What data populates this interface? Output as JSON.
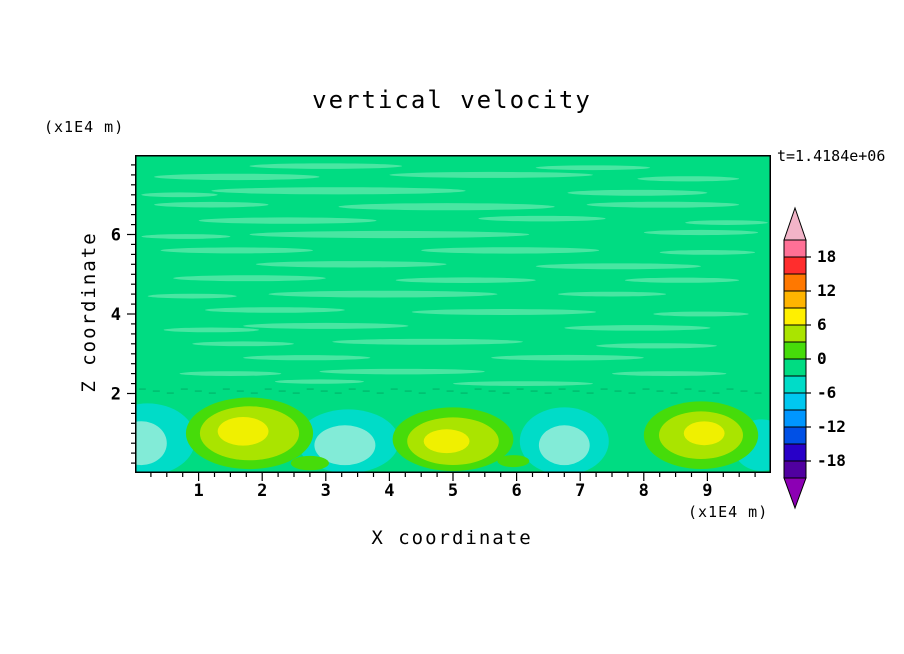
{
  "title": "vertical velocity",
  "time_label": "t=1.4184e+06",
  "axes": {
    "x_label": "X coordinate",
    "x_unit": "(x1E4 m)",
    "z_label": "Z coordinate",
    "z_unit": "(x1E4 m)"
  },
  "colorbar": {
    "labels": [
      "18",
      "12",
      "6",
      "0",
      "-6",
      "-12",
      "-18"
    ],
    "band_colors": [
      "#FF7096",
      "#FF2D2D",
      "#FF7800",
      "#FFB400",
      "#FFF000",
      "#AAE400",
      "#46DC0A",
      "#00DC82",
      "#00DCC8",
      "#00C8F0",
      "#0096FF",
      "#0050E6",
      "#2800C8",
      "#5000A0"
    ],
    "top_arrow_color": "#F2B4C8",
    "bottom_arrow_color": "#8C00B4",
    "value_min": -21,
    "value_max": 21,
    "contour_interval": 3
  },
  "chart_data": {
    "type": "heatmap",
    "title": "vertical velocity",
    "xlabel": "X coordinate (x1E4 m)",
    "ylabel": "Z coordinate (x1E4 m)",
    "time": "t=1.4184e+06",
    "x_range": [
      0,
      10
    ],
    "z_range": [
      0,
      8
    ],
    "x_ticks": [
      1,
      2,
      3,
      4,
      5,
      6,
      7,
      8,
      9
    ],
    "z_ticks": [
      2,
      4,
      6
    ],
    "minor_tick_step": 0.25,
    "value_levels": [
      -18,
      -12,
      -6,
      0,
      6,
      12,
      18
    ],
    "contour_interval": 3,
    "description": "Filled contour field of vertical velocity. Interior (z>2) is near zero (green band -3..0) with thin elongated horizontal streak anomalies of slightly positive velocity. Below z~2 alternating convective cells: updraft plumes (values ~6-12, yellow-green with yellow cores) centered near x=1.8, 5.0 and 8.9, and downdraft patches (values ~ -3 to -9, cyan) near x=0.2, 3.35, 6.75 and 9.85.",
    "colors": {
      "field": "#00DC82",
      "streak": "#49E6A2",
      "dash": "#00C070"
    },
    "streaks": [
      {
        "x": 3.0,
        "z": 7.72,
        "w": 2.4,
        "h": 0.14
      },
      {
        "x": 7.2,
        "z": 7.68,
        "w": 1.8,
        "h": 0.12
      },
      {
        "x": 1.6,
        "z": 7.45,
        "w": 2.6,
        "h": 0.16
      },
      {
        "x": 5.6,
        "z": 7.5,
        "w": 3.2,
        "h": 0.15
      },
      {
        "x": 8.7,
        "z": 7.4,
        "w": 1.6,
        "h": 0.13
      },
      {
        "x": 3.2,
        "z": 7.1,
        "w": 4.0,
        "h": 0.18
      },
      {
        "x": 7.9,
        "z": 7.05,
        "w": 2.2,
        "h": 0.15
      },
      {
        "x": 0.7,
        "z": 7.0,
        "w": 1.2,
        "h": 0.12
      },
      {
        "x": 4.9,
        "z": 6.7,
        "w": 3.4,
        "h": 0.18
      },
      {
        "x": 1.2,
        "z": 6.75,
        "w": 1.8,
        "h": 0.14
      },
      {
        "x": 8.3,
        "z": 6.75,
        "w": 2.4,
        "h": 0.15
      },
      {
        "x": 2.4,
        "z": 6.35,
        "w": 2.8,
        "h": 0.16
      },
      {
        "x": 6.4,
        "z": 6.4,
        "w": 2.0,
        "h": 0.14
      },
      {
        "x": 9.3,
        "z": 6.3,
        "w": 1.3,
        "h": 0.12
      },
      {
        "x": 4.0,
        "z": 6.0,
        "w": 4.4,
        "h": 0.18
      },
      {
        "x": 8.9,
        "z": 6.05,
        "w": 1.8,
        "h": 0.13
      },
      {
        "x": 0.8,
        "z": 5.95,
        "w": 1.4,
        "h": 0.12
      },
      {
        "x": 1.6,
        "z": 5.6,
        "w": 2.4,
        "h": 0.15
      },
      {
        "x": 5.9,
        "z": 5.6,
        "w": 2.8,
        "h": 0.16
      },
      {
        "x": 9.0,
        "z": 5.55,
        "w": 1.5,
        "h": 0.12
      },
      {
        "x": 3.4,
        "z": 5.25,
        "w": 3.0,
        "h": 0.16
      },
      {
        "x": 7.6,
        "z": 5.2,
        "w": 2.6,
        "h": 0.15
      },
      {
        "x": 1.8,
        "z": 4.9,
        "w": 2.4,
        "h": 0.15
      },
      {
        "x": 5.2,
        "z": 4.85,
        "w": 2.2,
        "h": 0.14
      },
      {
        "x": 8.6,
        "z": 4.85,
        "w": 1.8,
        "h": 0.13
      },
      {
        "x": 3.9,
        "z": 4.5,
        "w": 3.6,
        "h": 0.17
      },
      {
        "x": 7.5,
        "z": 4.5,
        "w": 1.7,
        "h": 0.12
      },
      {
        "x": 0.9,
        "z": 4.45,
        "w": 1.4,
        "h": 0.12
      },
      {
        "x": 2.2,
        "z": 4.1,
        "w": 2.2,
        "h": 0.14
      },
      {
        "x": 5.8,
        "z": 4.05,
        "w": 2.9,
        "h": 0.15
      },
      {
        "x": 8.9,
        "z": 4.0,
        "w": 1.5,
        "h": 0.12
      },
      {
        "x": 3.0,
        "z": 3.7,
        "w": 2.6,
        "h": 0.15
      },
      {
        "x": 7.9,
        "z": 3.65,
        "w": 2.3,
        "h": 0.14
      },
      {
        "x": 1.2,
        "z": 3.6,
        "w": 1.5,
        "h": 0.12
      },
      {
        "x": 4.6,
        "z": 3.3,
        "w": 3.0,
        "h": 0.15
      },
      {
        "x": 1.7,
        "z": 3.25,
        "w": 1.6,
        "h": 0.12
      },
      {
        "x": 8.2,
        "z": 3.2,
        "w": 1.9,
        "h": 0.13
      },
      {
        "x": 2.7,
        "z": 2.9,
        "w": 2.0,
        "h": 0.13
      },
      {
        "x": 6.8,
        "z": 2.9,
        "w": 2.4,
        "h": 0.14
      },
      {
        "x": 4.2,
        "z": 2.55,
        "w": 2.6,
        "h": 0.14
      },
      {
        "x": 8.4,
        "z": 2.5,
        "w": 1.8,
        "h": 0.12
      },
      {
        "x": 1.5,
        "z": 2.5,
        "w": 1.6,
        "h": 0.12
      },
      {
        "x": 6.1,
        "z": 2.25,
        "w": 2.2,
        "h": 0.12
      },
      {
        "x": 2.9,
        "z": 2.3,
        "w": 1.4,
        "h": 0.11
      }
    ],
    "dash_row": {
      "z": 2.08,
      "x_start": 0.06,
      "x_end": 9.94,
      "step": 0.22,
      "len": 0.11
    },
    "blobs": [
      {
        "cx": 0.2,
        "cz": 0.85,
        "rx": 0.75,
        "rz": 0.9,
        "fill": "#00DCC8"
      },
      {
        "cx": 0.1,
        "cz": 0.75,
        "rx": 0.4,
        "rz": 0.55,
        "fill": "#82EBD7"
      },
      {
        "cx": 3.35,
        "cz": 0.8,
        "rx": 0.8,
        "rz": 0.8,
        "fill": "#00DCC8"
      },
      {
        "cx": 3.3,
        "cz": 0.7,
        "rx": 0.48,
        "rz": 0.5,
        "fill": "#82EBD7"
      },
      {
        "cx": 6.75,
        "cz": 0.8,
        "rx": 0.7,
        "rz": 0.85,
        "fill": "#00DCC8"
      },
      {
        "cx": 6.75,
        "cz": 0.7,
        "rx": 0.4,
        "rz": 0.5,
        "fill": "#82EBD7"
      },
      {
        "cx": 9.85,
        "cz": 0.7,
        "rx": 0.45,
        "rz": 0.65,
        "fill": "#00DCC8"
      },
      {
        "cx": 1.8,
        "cz": 1.0,
        "rx": 1.0,
        "rz": 0.9,
        "fill": "#46DC0A"
      },
      {
        "cx": 1.8,
        "cz": 1.0,
        "rx": 0.78,
        "rz": 0.68,
        "fill": "#AAE400"
      },
      {
        "cx": 1.7,
        "cz": 1.05,
        "rx": 0.4,
        "rz": 0.36,
        "fill": "#F0F000"
      },
      {
        "cx": 5.0,
        "cz": 0.85,
        "rx": 0.95,
        "rz": 0.8,
        "fill": "#46DC0A"
      },
      {
        "cx": 5.0,
        "cz": 0.8,
        "rx": 0.72,
        "rz": 0.6,
        "fill": "#AAE400"
      },
      {
        "cx": 4.9,
        "cz": 0.8,
        "rx": 0.36,
        "rz": 0.3,
        "fill": "#F0F000"
      },
      {
        "cx": 8.9,
        "cz": 0.95,
        "rx": 0.9,
        "rz": 0.85,
        "fill": "#46DC0A"
      },
      {
        "cx": 8.9,
        "cz": 0.95,
        "rx": 0.66,
        "rz": 0.6,
        "fill": "#AAE400"
      },
      {
        "cx": 8.95,
        "cz": 1.0,
        "rx": 0.32,
        "rz": 0.3,
        "fill": "#F0F000"
      },
      {
        "cx": 2.75,
        "cz": 0.25,
        "rx": 0.3,
        "rz": 0.18,
        "fill": "#46DC0A"
      },
      {
        "cx": 5.95,
        "cz": 0.3,
        "rx": 0.25,
        "rz": 0.15,
        "fill": "#46DC0A"
      }
    ]
  }
}
